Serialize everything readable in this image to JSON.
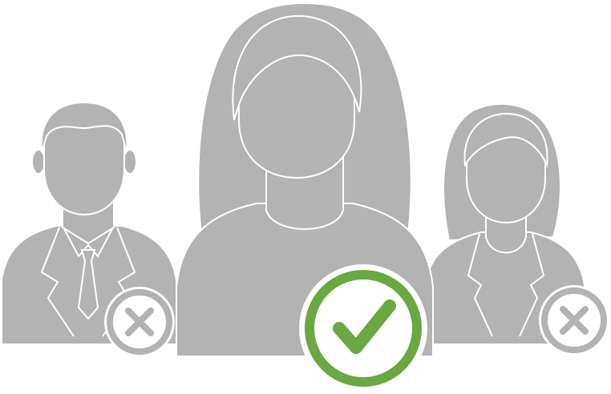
{
  "illustration": {
    "description_hidden": "",
    "palette": {
      "figure": "#b3b3b3",
      "outline": "#ffffff",
      "accept": "#6aa842",
      "reject": "#b3b3b3",
      "badge_fill": "#ffffff"
    },
    "candidates": [
      {
        "role": "man-in-suit",
        "status": "rejected",
        "status_icon": "x-mark-icon"
      },
      {
        "role": "woman-long-hair",
        "status": "accepted",
        "status_icon": "check-mark-icon"
      },
      {
        "role": "woman-in-blazer",
        "status": "rejected",
        "status_icon": "x-mark-icon"
      }
    ]
  }
}
